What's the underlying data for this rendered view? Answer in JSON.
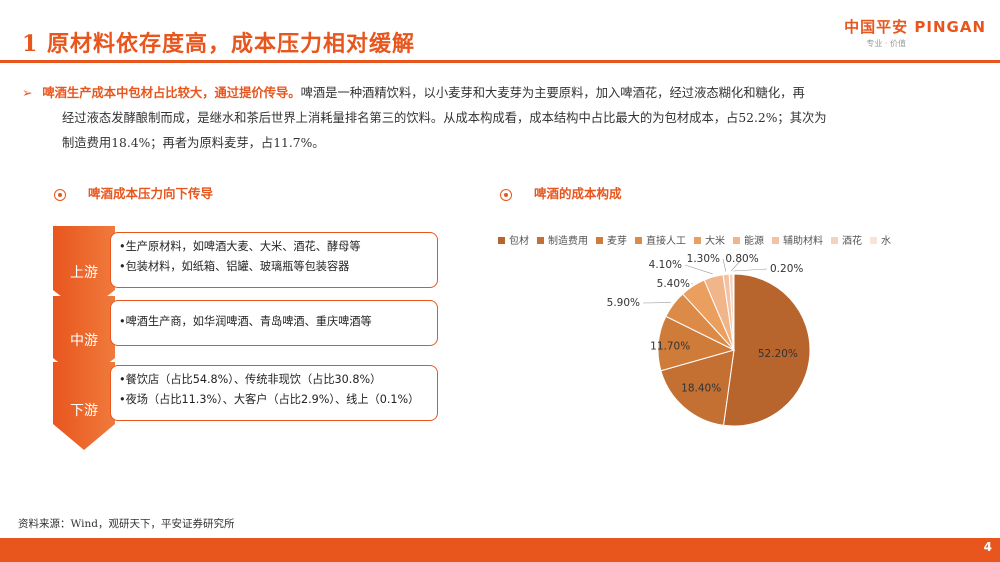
{
  "header": {
    "title": "1 原材料依存度高，成本压力相对缓解",
    "logo_text": "中国平安 PINGAN",
    "logo_sub": "专业 · 价值"
  },
  "paragraph": {
    "lead": "啤酒生产成本中包材占比较大，通过提价传导。",
    "line1": "啤酒是一种酒精饮料，以小麦芽和大麦芽为主要原料，加入啤酒花，经过液态糊化和糖化，再",
    "line2": "经过液态发酵酿制而成，是继水和茶后世界上消耗量排名第三的饮料。从成本构成看，成本结构中占比最大的为包材成本，占52.2%；其次为",
    "line3": "制造费用18.4%；再者为原料麦芽，占11.7%。"
  },
  "left_section": {
    "heading": "啤酒成本压力向下传导",
    "stages": [
      {
        "label": "上游",
        "lines": [
          "•生产原材料，如啤酒大麦、大米、酒花、酵母等",
          "•包装材料，如纸箱、铝罐、玻璃瓶等包装容器"
        ]
      },
      {
        "label": "中游",
        "lines": [
          "•啤酒生产商，如华润啤酒、青岛啤酒、重庆啤酒等"
        ]
      },
      {
        "label": "下游",
        "lines": [
          "•餐饮店（占比54.8%）、传统非现饮（占比30.8%）",
          "•夜场（占比11.3%）、大客户（占比2.9%）、线上（0.1%）"
        ]
      }
    ]
  },
  "right_section": {
    "heading": "啤酒的成本构成"
  },
  "chart_data": {
    "type": "pie",
    "title": "",
    "legend_position": "top",
    "categories": [
      "包材",
      "制造费用",
      "麦芽",
      "直接人工",
      "大米",
      "能源",
      "辅助材料",
      "酒花",
      "水"
    ],
    "values": [
      52.2,
      18.4,
      11.7,
      5.9,
      5.4,
      4.1,
      1.3,
      0.8,
      0.2
    ],
    "labels": [
      "52.20%",
      "18.40%",
      "11.70%",
      "5.90%",
      "5.40%",
      "4.10%",
      "1.30%",
      "0.80%",
      "0.20%"
    ],
    "colors": [
      "#b8642d",
      "#c47033",
      "#cf7b3a",
      "#dc8a48",
      "#eb9f5e",
      "#f1b58a",
      "#f3c2a3",
      "#f5d2bc",
      "#f8e3d6"
    ]
  },
  "footer": {
    "source": "资料来源：Wind，观研天下，平安证券研究所",
    "page": "4"
  }
}
